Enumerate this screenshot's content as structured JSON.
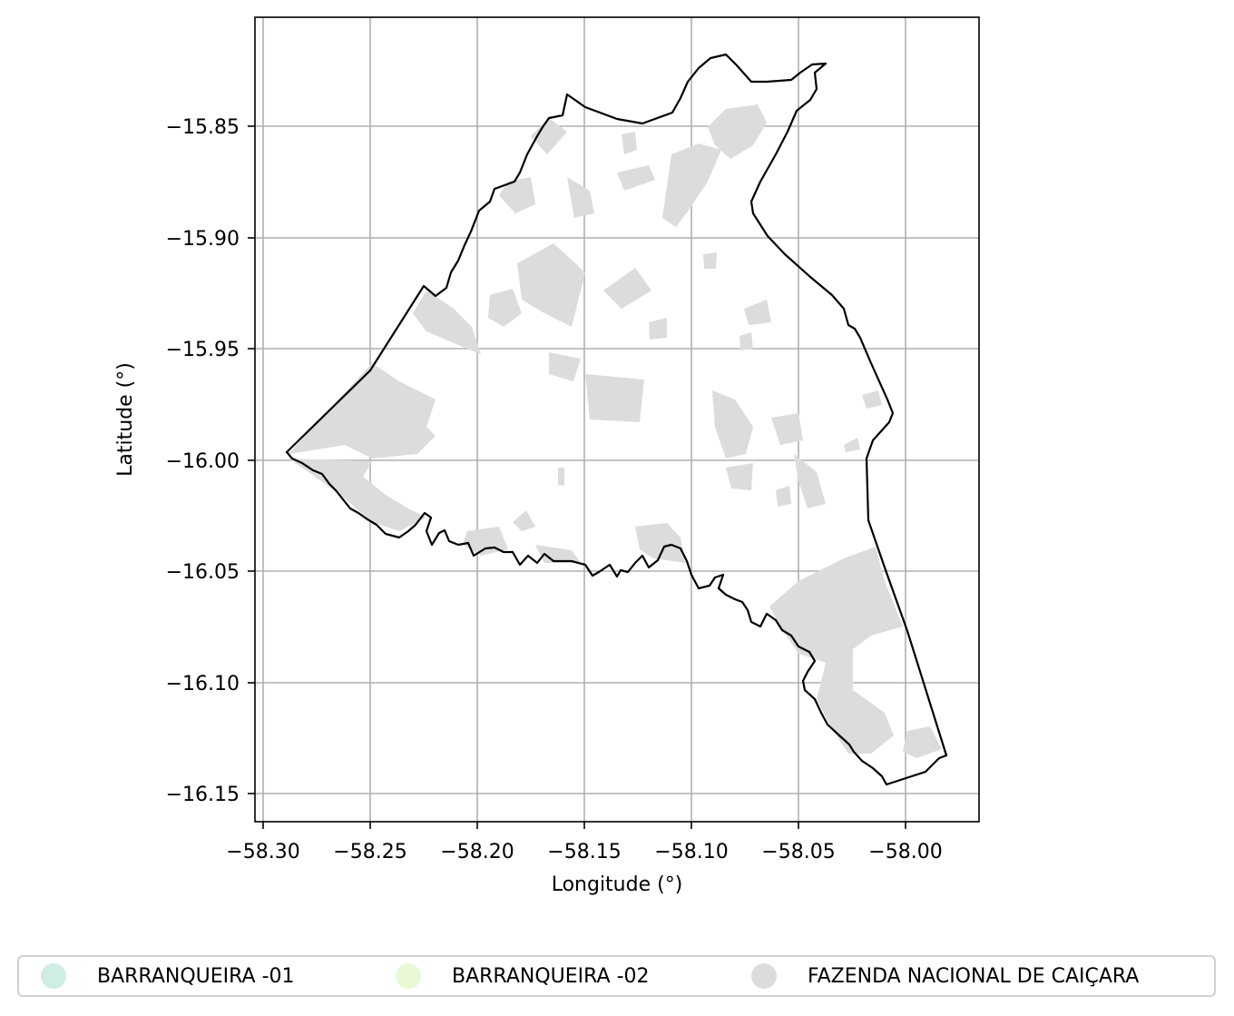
{
  "map": {
    "xlabel": "Longitude (°)",
    "ylabel": "Latitude (°)",
    "xticks": [
      "−58.30",
      "−58.25",
      "−58.20",
      "−58.15",
      "−58.10",
      "−58.05",
      "−58.00"
    ],
    "yticks": [
      "−15.85",
      "−15.90",
      "−15.95",
      "−16.00",
      "−16.05",
      "−16.10",
      "−16.15"
    ],
    "grid": true,
    "boundary_color": "#000000",
    "grid_color": "#b0b0b0"
  },
  "legend": {
    "placement": "bottom",
    "items": [
      {
        "label": "BARRANQUEIRA -01",
        "color": "#cdeee0"
      },
      {
        "label": "BARRANQUEIRA -02",
        "color": "#eaf8d6"
      },
      {
        "label": "FAZENDA NACIONAL DE CAIÇARA",
        "color": "#dcdcdc"
      }
    ]
  }
}
